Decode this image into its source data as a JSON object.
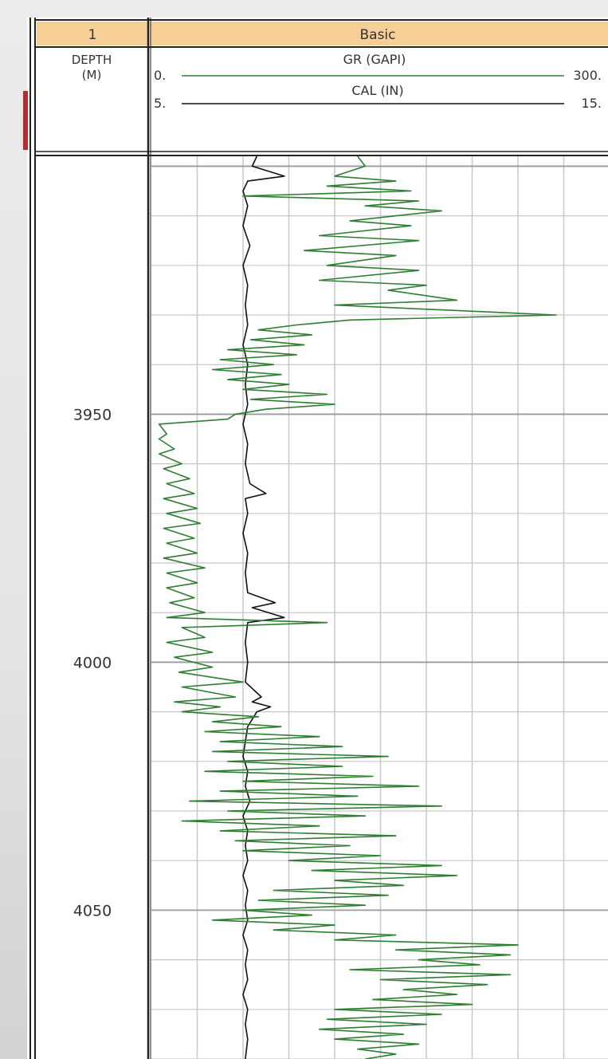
{
  "track_header": {
    "depth_track_number": "1",
    "main_track_title": "Basic",
    "depth_label_line1": "DEPTH",
    "depth_label_line2": "(M)"
  },
  "curves": {
    "gr": {
      "label": "GR (GAPI)",
      "min_label": "0.",
      "max_label": "300."
    },
    "cal": {
      "label": "CAL (IN)",
      "min_label": "5.",
      "max_label": "15."
    }
  },
  "colors": {
    "header_fill": "#f6cf97",
    "gr_curve": "#2e7d32",
    "cal_curve": "#111111",
    "grid": "#c8c8c8",
    "indicator": "#c0292b"
  },
  "chart_data": {
    "type": "line",
    "title": "",
    "xlabel": "",
    "ylabel": "DEPTH (M)",
    "ylim": [
      3898,
      4080
    ],
    "y_inverted": true,
    "depth_ticks": [
      3950,
      4000,
      4050
    ],
    "grid": true,
    "series": [
      {
        "name": "GR (GAPI)",
        "xlim": [
          0,
          300
        ],
        "points": [
          [
            3898,
            135
          ],
          [
            3900,
            140
          ],
          [
            3902,
            120
          ],
          [
            3903,
            160
          ],
          [
            3904,
            115
          ],
          [
            3905,
            170
          ],
          [
            3906,
            60
          ],
          [
            3907,
            175
          ],
          [
            3908,
            140
          ],
          [
            3909,
            190
          ],
          [
            3911,
            130
          ],
          [
            3912,
            170
          ],
          [
            3914,
            110
          ],
          [
            3915,
            175
          ],
          [
            3917,
            100
          ],
          [
            3918,
            160
          ],
          [
            3920,
            115
          ],
          [
            3921,
            175
          ],
          [
            3923,
            110
          ],
          [
            3924,
            180
          ],
          [
            3925,
            155
          ],
          [
            3927,
            200
          ],
          [
            3928,
            120
          ],
          [
            3930,
            265
          ],
          [
            3931,
            130
          ],
          [
            3932,
            95
          ],
          [
            3933,
            70
          ],
          [
            3934,
            105
          ],
          [
            3935,
            65
          ],
          [
            3936,
            100
          ],
          [
            3937,
            50
          ],
          [
            3938,
            95
          ],
          [
            3939,
            45
          ],
          [
            3940,
            80
          ],
          [
            3941,
            40
          ],
          [
            3942,
            85
          ],
          [
            3943,
            50
          ],
          [
            3944,
            90
          ],
          [
            3945,
            60
          ],
          [
            3946,
            115
          ],
          [
            3947,
            65
          ],
          [
            3948,
            120
          ],
          [
            3949,
            75
          ],
          [
            3950,
            55
          ],
          [
            3951,
            50
          ],
          [
            3952,
            5
          ],
          [
            3954,
            10
          ],
          [
            3955,
            5
          ],
          [
            3957,
            15
          ],
          [
            3958,
            5
          ],
          [
            3960,
            20
          ],
          [
            3961,
            8
          ],
          [
            3963,
            25
          ],
          [
            3964,
            10
          ],
          [
            3966,
            28
          ],
          [
            3967,
            8
          ],
          [
            3969,
            30
          ],
          [
            3970,
            10
          ],
          [
            3972,
            32
          ],
          [
            3973,
            8
          ],
          [
            3975,
            28
          ],
          [
            3976,
            10
          ],
          [
            3978,
            30
          ],
          [
            3979,
            8
          ],
          [
            3981,
            35
          ],
          [
            3982,
            10
          ],
          [
            3984,
            30
          ],
          [
            3985,
            10
          ],
          [
            3987,
            28
          ],
          [
            3988,
            12
          ],
          [
            3990,
            35
          ],
          [
            3991,
            10
          ],
          [
            3992,
            115
          ],
          [
            3993,
            20
          ],
          [
            3995,
            35
          ],
          [
            3996,
            10
          ],
          [
            3998,
            40
          ],
          [
            3999,
            15
          ],
          [
            4001,
            40
          ],
          [
            4002,
            18
          ],
          [
            4004,
            60
          ],
          [
            4005,
            20
          ],
          [
            4007,
            55
          ],
          [
            4008,
            15
          ],
          [
            4009,
            45
          ],
          [
            4010,
            20
          ],
          [
            4011,
            70
          ],
          [
            4012,
            40
          ],
          [
            4013,
            85
          ],
          [
            4014,
            35
          ],
          [
            4015,
            110
          ],
          [
            4016,
            45
          ],
          [
            4017,
            125
          ],
          [
            4018,
            40
          ],
          [
            4019,
            155
          ],
          [
            4020,
            50
          ],
          [
            4021,
            125
          ],
          [
            4022,
            35
          ],
          [
            4023,
            145
          ],
          [
            4024,
            60
          ],
          [
            4025,
            175
          ],
          [
            4026,
            45
          ],
          [
            4027,
            135
          ],
          [
            4028,
            25
          ],
          [
            4029,
            190
          ],
          [
            4030,
            50
          ],
          [
            4031,
            140
          ],
          [
            4032,
            20
          ],
          [
            4033,
            110
          ],
          [
            4034,
            45
          ],
          [
            4035,
            160
          ],
          [
            4036,
            55
          ],
          [
            4037,
            130
          ],
          [
            4038,
            60
          ],
          [
            4039,
            150
          ],
          [
            4040,
            90
          ],
          [
            4041,
            190
          ],
          [
            4042,
            105
          ],
          [
            4043,
            200
          ],
          [
            4044,
            120
          ],
          [
            4045,
            165
          ],
          [
            4046,
            80
          ],
          [
            4047,
            155
          ],
          [
            4048,
            70
          ],
          [
            4049,
            140
          ],
          [
            4050,
            60
          ],
          [
            4051,
            105
          ],
          [
            4052,
            40
          ],
          [
            4053,
            120
          ],
          [
            4054,
            80
          ],
          [
            4055,
            160
          ],
          [
            4056,
            120
          ],
          [
            4057,
            240
          ],
          [
            4058,
            160
          ],
          [
            4059,
            235
          ],
          [
            4060,
            175
          ],
          [
            4061,
            215
          ],
          [
            4062,
            130
          ],
          [
            4063,
            235
          ],
          [
            4064,
            150
          ],
          [
            4065,
            220
          ],
          [
            4066,
            165
          ],
          [
            4067,
            200
          ],
          [
            4068,
            145
          ],
          [
            4069,
            210
          ],
          [
            4070,
            120
          ],
          [
            4071,
            190
          ],
          [
            4072,
            115
          ],
          [
            4073,
            180
          ],
          [
            4074,
            110
          ],
          [
            4075,
            165
          ],
          [
            4076,
            120
          ],
          [
            4077,
            175
          ],
          [
            4078,
            135
          ],
          [
            4079,
            160
          ],
          [
            4080,
            140
          ]
        ]
      },
      {
        "name": "CAL (IN)",
        "xlim": [
          5,
          15
        ],
        "points": [
          [
            3898,
            7.3
          ],
          [
            3900,
            7.2
          ],
          [
            3902,
            7.9
          ],
          [
            3903,
            7.1
          ],
          [
            3905,
            7.0
          ],
          [
            3908,
            7.1
          ],
          [
            3912,
            7.0
          ],
          [
            3916,
            7.15
          ],
          [
            3920,
            7.0
          ],
          [
            3924,
            7.1
          ],
          [
            3928,
            7.05
          ],
          [
            3932,
            7.1
          ],
          [
            3936,
            7.0
          ],
          [
            3940,
            7.1
          ],
          [
            3944,
            7.05
          ],
          [
            3948,
            7.1
          ],
          [
            3952,
            7.0
          ],
          [
            3956,
            7.1
          ],
          [
            3960,
            7.05
          ],
          [
            3964,
            7.15
          ],
          [
            3966,
            7.5
          ],
          [
            3967,
            7.05
          ],
          [
            3970,
            7.1
          ],
          [
            3974,
            7.0
          ],
          [
            3978,
            7.1
          ],
          [
            3982,
            7.05
          ],
          [
            3986,
            7.1
          ],
          [
            3988,
            7.7
          ],
          [
            3989,
            7.2
          ],
          [
            3991,
            7.9
          ],
          [
            3992,
            7.1
          ],
          [
            3996,
            7.05
          ],
          [
            4000,
            7.1
          ],
          [
            4004,
            7.05
          ],
          [
            4007,
            7.4
          ],
          [
            4008,
            7.2
          ],
          [
            4009,
            7.6
          ],
          [
            4010,
            7.3
          ],
          [
            4013,
            7.1
          ],
          [
            4016,
            7.05
          ],
          [
            4019,
            7.0
          ],
          [
            4022,
            7.1
          ],
          [
            4025,
            7.05
          ],
          [
            4028,
            7.15
          ],
          [
            4031,
            7.0
          ],
          [
            4034,
            7.1
          ],
          [
            4037,
            7.05
          ],
          [
            4040,
            7.1
          ],
          [
            4043,
            7.0
          ],
          [
            4046,
            7.1
          ],
          [
            4049,
            7.05
          ],
          [
            4052,
            7.1
          ],
          [
            4055,
            7.0
          ],
          [
            4058,
            7.1
          ],
          [
            4061,
            7.05
          ],
          [
            4064,
            7.1
          ],
          [
            4067,
            7.0
          ],
          [
            4070,
            7.1
          ],
          [
            4073,
            7.05
          ],
          [
            4076,
            7.1
          ],
          [
            4080,
            7.05
          ]
        ]
      }
    ]
  }
}
